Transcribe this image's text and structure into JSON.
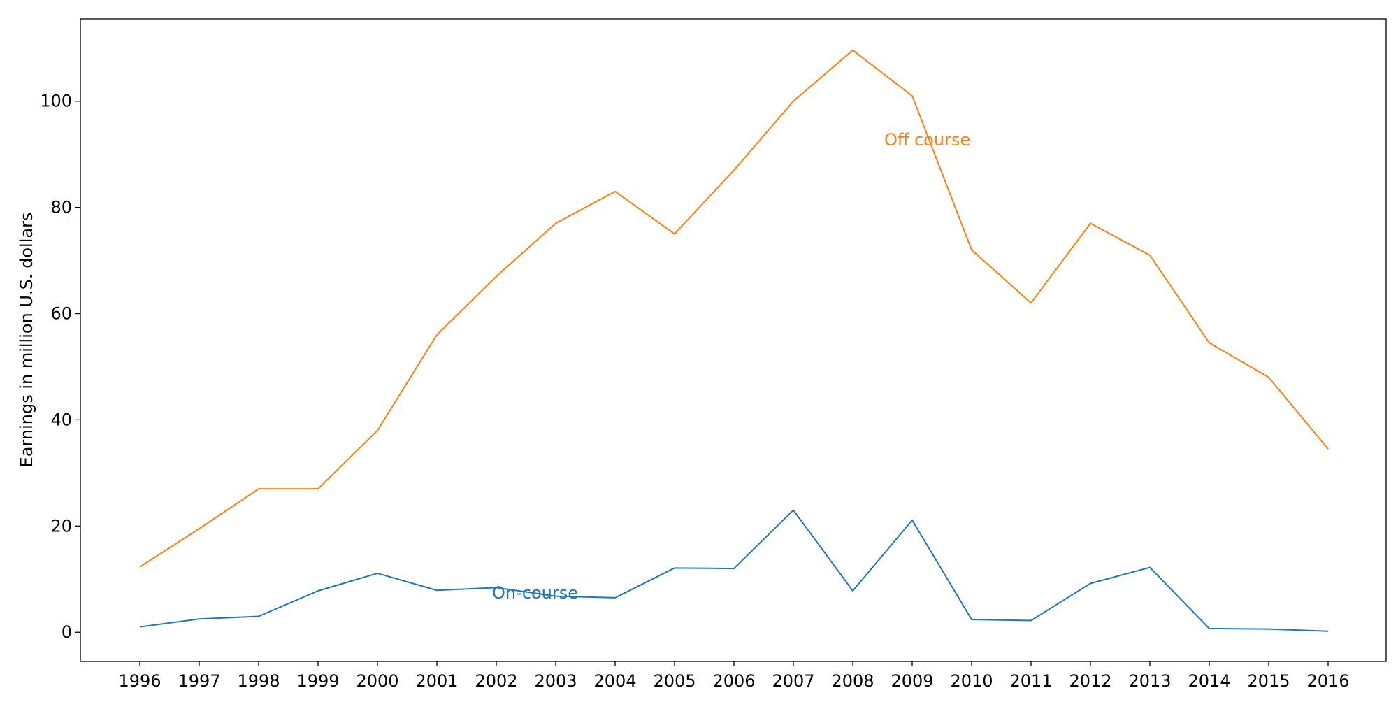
{
  "chart_data": {
    "type": "line",
    "title": "",
    "xlabel": "",
    "ylabel": "Earnings in million U.S. dollars",
    "x": [
      "1996",
      "1997",
      "1998",
      "1999",
      "2000",
      "2001",
      "2002",
      "2003",
      "2004",
      "2005",
      "2006",
      "2007",
      "2008",
      "2009",
      "2010",
      "2011",
      "2012",
      "2013",
      "2014",
      "2015",
      "2016"
    ],
    "yticks": [
      0,
      20,
      40,
      60,
      80,
      100
    ],
    "ylim": [
      -5.5,
      115.5
    ],
    "grid": false,
    "legend": "none",
    "series": [
      {
        "name": "On-course",
        "color": "#1f77b4",
        "values": [
          1.0,
          2.5,
          3.0,
          7.8,
          11.1,
          7.9,
          8.4,
          6.8,
          6.5,
          12.1,
          12.0,
          23.0,
          7.8,
          21.1,
          2.4,
          2.2,
          9.2,
          12.2,
          0.7,
          0.6,
          0.2
        ]
      },
      {
        "name": "Off course",
        "color": "#ff7f0e",
        "values": [
          12.3,
          19.5,
          27.0,
          27.0,
          38.0,
          56.0,
          67.0,
          77.0,
          83.0,
          75.0,
          87.0,
          100.0,
          109.6,
          101.0,
          72.0,
          62.0,
          77.0,
          71.0,
          54.5,
          48.0,
          34.5
        ]
      }
    ]
  }
}
